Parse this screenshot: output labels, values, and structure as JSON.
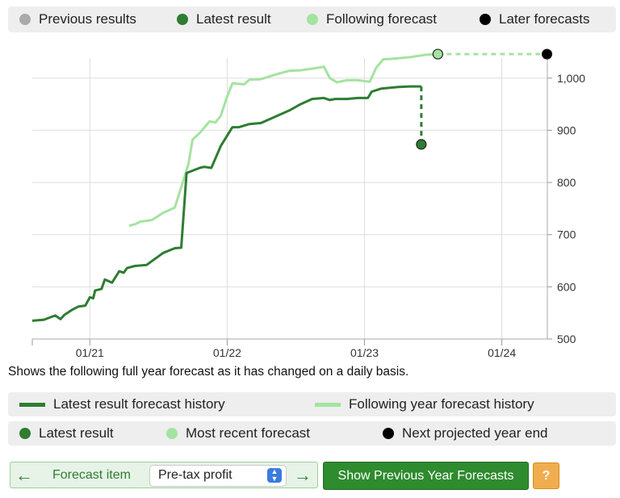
{
  "colors": {
    "previous": "#aaaaaa",
    "latest": "#2e7d32",
    "following": "#a5e3a0",
    "later": "#000000",
    "grid": "#dddddd"
  },
  "legend_top": [
    {
      "label": "Previous results",
      "color": "#aaaaaa"
    },
    {
      "label": "Latest result",
      "color": "#2e7d32"
    },
    {
      "label": "Following forecast",
      "color": "#a5e3a0"
    },
    {
      "label": "Later forecasts",
      "color": "#000000"
    }
  ],
  "caption": "Shows the following full year forecast as it has changed on a daily basis.",
  "legend_lines": [
    {
      "label": "Latest result forecast history",
      "color": "#2e7d32"
    },
    {
      "label": "Following year forecast history",
      "color": "#a5e3a0"
    }
  ],
  "legend_points": [
    {
      "label": "Latest result",
      "color": "#2e7d32"
    },
    {
      "label": "Most recent forecast",
      "color": "#a5e3a0"
    },
    {
      "label": "Next projected year end",
      "color": "#000000"
    }
  ],
  "controls": {
    "prev_icon": "left-arrow-icon",
    "next_icon": "right-arrow-icon",
    "forecast_item_label": "Forecast item",
    "selected_item": "Pre-tax profit",
    "show_button": "Show Previous Year Forecasts",
    "help_button": "?"
  },
  "chart_data": {
    "type": "line",
    "x_axis": {
      "type": "date",
      "range": [
        "2020-08-01",
        "2024-05-01"
      ],
      "tick_labels": [
        "01/21",
        "01/22",
        "01/23",
        "01/24"
      ]
    },
    "y_axis": {
      "range": [
        500,
        1060
      ],
      "ticks": [
        500,
        600,
        700,
        800,
        900,
        1000
      ],
      "tick_labels": [
        "500",
        "600",
        "700",
        "800",
        "900",
        "1,000"
      ],
      "position": "right"
    },
    "grid": true,
    "series": [
      {
        "name": "Latest result forecast history",
        "color": "#2e7d32",
        "points": [
          [
            "2020-08-01",
            535
          ],
          [
            "2020-09-01",
            537
          ],
          [
            "2020-10-01",
            545
          ],
          [
            "2020-10-15",
            538
          ],
          [
            "2020-10-25",
            546
          ],
          [
            "2020-11-15",
            556
          ],
          [
            "2020-12-01",
            562
          ],
          [
            "2020-12-20",
            564
          ],
          [
            "2021-01-01",
            580
          ],
          [
            "2021-01-10",
            578
          ],
          [
            "2021-01-15",
            593
          ],
          [
            "2021-02-01",
            596
          ],
          [
            "2021-02-10",
            614
          ],
          [
            "2021-03-01",
            608
          ],
          [
            "2021-03-20",
            630
          ],
          [
            "2021-04-01",
            627
          ],
          [
            "2021-04-10",
            636
          ],
          [
            "2021-05-01",
            640
          ],
          [
            "2021-06-01",
            642
          ],
          [
            "2021-07-15",
            665
          ],
          [
            "2021-08-15",
            674
          ],
          [
            "2021-09-01",
            675
          ],
          [
            "2021-09-15",
            818
          ],
          [
            "2021-10-20",
            828
          ],
          [
            "2021-11-01",
            830
          ],
          [
            "2021-11-20",
            828
          ],
          [
            "2021-12-15",
            870
          ],
          [
            "2022-01-15",
            906
          ],
          [
            "2022-02-01",
            906
          ],
          [
            "2022-03-01",
            912
          ],
          [
            "2022-04-01",
            914
          ],
          [
            "2022-05-15",
            928
          ],
          [
            "2022-06-15",
            938
          ],
          [
            "2022-07-15",
            950
          ],
          [
            "2022-08-15",
            960
          ],
          [
            "2022-09-15",
            962
          ],
          [
            "2022-10-01",
            958
          ],
          [
            "2022-10-15",
            960
          ],
          [
            "2022-11-15",
            960
          ],
          [
            "2022-12-15",
            962
          ],
          [
            "2023-01-10",
            962
          ],
          [
            "2023-01-20",
            974
          ],
          [
            "2023-02-15",
            980
          ],
          [
            "2023-04-01",
            983
          ],
          [
            "2023-05-01",
            984
          ],
          [
            "2023-06-01",
            984
          ]
        ]
      },
      {
        "name": "Following year forecast history",
        "color": "#a5e3a0",
        "points": [
          [
            "2021-04-15",
            717
          ],
          [
            "2021-05-01",
            720
          ],
          [
            "2021-05-15",
            725
          ],
          [
            "2021-06-15",
            728
          ],
          [
            "2021-07-15",
            742
          ],
          [
            "2021-08-15",
            752
          ],
          [
            "2021-09-20",
            835
          ],
          [
            "2021-10-01",
            882
          ],
          [
            "2021-10-20",
            895
          ],
          [
            "2021-11-01",
            905
          ],
          [
            "2021-11-15",
            917
          ],
          [
            "2021-12-01",
            915
          ],
          [
            "2021-12-15",
            928
          ],
          [
            "2022-01-01",
            965
          ],
          [
            "2022-01-15",
            990
          ],
          [
            "2022-02-15",
            988
          ],
          [
            "2022-03-01",
            997
          ],
          [
            "2022-04-01",
            998
          ],
          [
            "2022-05-15",
            1008
          ],
          [
            "2022-06-15",
            1014
          ],
          [
            "2022-07-15",
            1015
          ],
          [
            "2022-08-15",
            1018
          ],
          [
            "2022-09-15",
            1022
          ],
          [
            "2022-10-01",
            1000
          ],
          [
            "2022-10-20",
            992
          ],
          [
            "2022-11-15",
            996
          ],
          [
            "2022-12-15",
            996
          ],
          [
            "2023-01-15",
            993
          ],
          [
            "2023-02-01",
            1020
          ],
          [
            "2023-02-20",
            1036
          ],
          [
            "2023-03-15",
            1037
          ],
          [
            "2023-05-01",
            1040
          ],
          [
            "2023-06-15",
            1045
          ],
          [
            "2023-07-15",
            1046
          ]
        ]
      }
    ],
    "connectors": [
      {
        "from": [
          "2023-06-01",
          984
        ],
        "to": [
          "2023-06-01",
          873
        ],
        "color": "#2e7d32",
        "style": "dashed"
      },
      {
        "from": [
          "2023-07-15",
          1046
        ],
        "to": [
          "2024-04-30",
          1046
        ],
        "color": "#a5e3a0",
        "style": "dashed"
      }
    ],
    "markers": [
      {
        "label": "Latest result",
        "x": "2023-06-01",
        "y": 873,
        "color": "#2e7d32"
      },
      {
        "label": "Most recent forecast",
        "x": "2023-07-15",
        "y": 1046,
        "color": "#a5e3a0"
      },
      {
        "label": "Next projected year end",
        "x": "2024-04-30",
        "y": 1046,
        "color": "#000000"
      }
    ]
  }
}
